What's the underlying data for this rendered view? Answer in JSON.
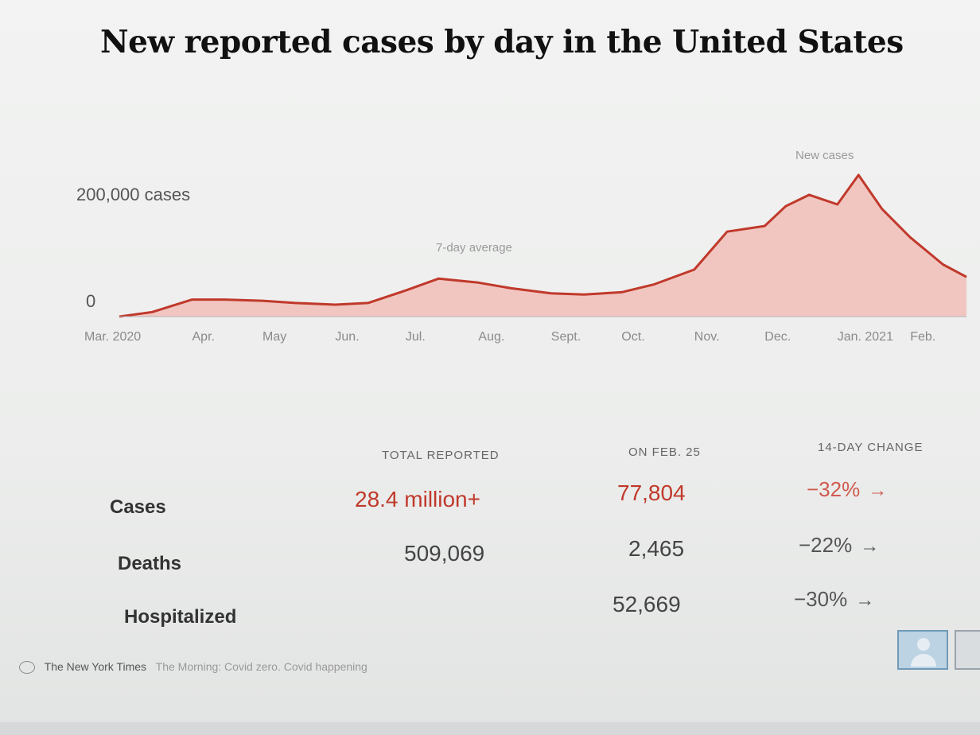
{
  "header": {
    "title": "New reported cases by day in the United States"
  },
  "chart_data": {
    "type": "area",
    "title": "New reported cases by day in the United States",
    "y_axis": {
      "label": "200,000 cases",
      "zero_label": "0",
      "ylim": [
        0,
        250000
      ]
    },
    "x_tick_labels": [
      "Mar. 2020",
      "Apr.",
      "May",
      "Jun.",
      "Jul.",
      "Aug.",
      "Sept.",
      "Oct.",
      "Nov.",
      "Dec.",
      "Jan. 2021",
      "Feb."
    ],
    "annotations": {
      "new_cases": "New cases",
      "seven_day": "7-day average"
    },
    "series": [
      {
        "name": "7-day average",
        "color": "#c0392b",
        "fill": "#f2b8b0",
        "x": [
          "2020-03-01",
          "2020-03-15",
          "2020-04-01",
          "2020-04-15",
          "2020-05-01",
          "2020-05-15",
          "2020-06-01",
          "2020-06-15",
          "2020-07-01",
          "2020-07-15",
          "2020-08-01",
          "2020-08-15",
          "2020-09-01",
          "2020-09-15",
          "2020-10-01",
          "2020-10-15",
          "2020-11-01",
          "2020-11-15",
          "2020-12-01",
          "2020-12-10",
          "2020-12-20",
          "2021-01-01",
          "2021-01-10",
          "2021-01-20",
          "2021-02-01",
          "2021-02-15",
          "2021-02-25"
        ],
        "y": [
          0,
          8000,
          30000,
          30000,
          28000,
          24000,
          21000,
          24000,
          46000,
          67000,
          60000,
          50000,
          41000,
          39000,
          43000,
          57000,
          83000,
          150000,
          160000,
          195000,
          215000,
          198000,
          250000,
          190000,
          140000,
          92000,
          70000
        ]
      }
    ]
  },
  "stats": {
    "columns": {
      "total": "TOTAL REPORTED",
      "on_date": "ON FEB. 25",
      "change": "14-DAY CHANGE"
    },
    "rows": [
      {
        "label": "Cases",
        "total": "28.4 million+",
        "on_date": "77,804",
        "change": "−32%",
        "arrow": "→",
        "highlight": true
      },
      {
        "label": "Deaths",
        "total": "509,069",
        "on_date": "2,465",
        "change": "−22%",
        "arrow": "→",
        "highlight": false
      },
      {
        "label": "Hospitalized",
        "total": "",
        "on_date": "52,669",
        "change": "−30%",
        "arrow": "→",
        "highlight": false
      }
    ]
  },
  "footer": {
    "brand": "The New York Times",
    "story": "The Morning: Covid zero. Covid happening"
  }
}
